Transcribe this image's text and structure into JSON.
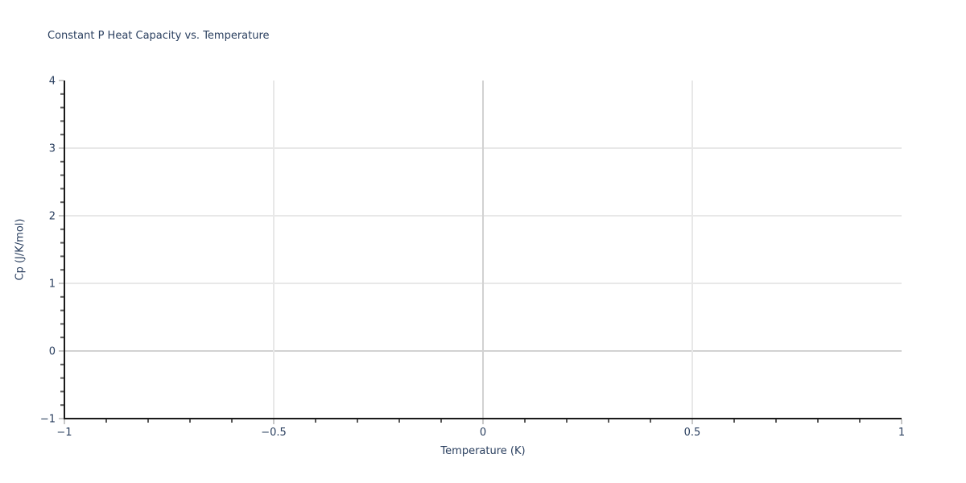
{
  "chart_data": {
    "type": "line",
    "title": "Constant P Heat Capacity vs. Temperature",
    "xlabel": "Temperature (K)",
    "ylabel": "Cp (J/K/mol)",
    "xlim": [
      -1,
      1
    ],
    "ylim": [
      -1,
      4
    ],
    "x_ticks": [
      {
        "value": -1,
        "label": "−1"
      },
      {
        "value": -0.5,
        "label": "−0.5"
      },
      {
        "value": 0,
        "label": "0"
      },
      {
        "value": 0.5,
        "label": "0.5"
      },
      {
        "value": 1,
        "label": "1"
      }
    ],
    "y_ticks": [
      {
        "value": -1,
        "label": "−1"
      },
      {
        "value": 0,
        "label": "0"
      },
      {
        "value": 1,
        "label": "1"
      },
      {
        "value": 2,
        "label": "2"
      },
      {
        "value": 3,
        "label": "3"
      },
      {
        "value": 4,
        "label": "4"
      }
    ],
    "x_minor_step": 0.1,
    "y_minor_step": 0.2,
    "grid": true,
    "legend": false,
    "series": [],
    "colors": {
      "text": "#2a3f5f",
      "axis": "#1a1a1a",
      "gridline": "#e8e8e8",
      "zeroline": "#d2d2d2",
      "major_tick": "#c8c8c8",
      "minor_tick": "#5a5a5a",
      "background": "#ffffff"
    }
  }
}
